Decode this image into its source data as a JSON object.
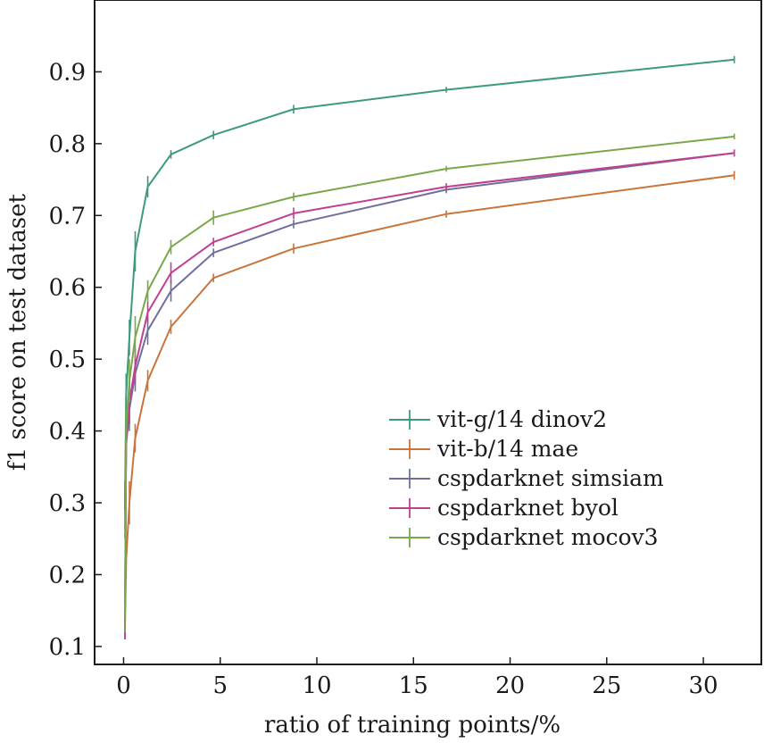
{
  "chart_data": {
    "type": "line",
    "xlabel": "ratio of training points/%",
    "ylabel": "f1 score on test dataset",
    "xlim": [
      -1.5,
      33
    ],
    "ylim": [
      0.075,
      1.0
    ],
    "xticks": [
      0,
      5,
      10,
      15,
      20,
      25,
      30
    ],
    "yticks": [
      0.1,
      0.2,
      0.3,
      0.4,
      0.5,
      0.6,
      0.7,
      0.8,
      0.9
    ],
    "xtick_labels": [
      "0",
      "5",
      "10",
      "15",
      "20",
      "25",
      "30"
    ],
    "ytick_labels": [
      "0.1",
      "0.2",
      "0.3",
      "0.4",
      "0.5",
      "0.6",
      "0.7",
      "0.8",
      "0.9"
    ],
    "grid": false,
    "legend_position": "center-right",
    "x": [
      0.07,
      0.13,
      0.3,
      0.6,
      1.25,
      2.45,
      4.65,
      8.8,
      16.7,
      31.6
    ],
    "series": [
      {
        "name": "vit-g/14 dinov2",
        "color": "#3d9a7c",
        "values": [
          0.29,
          0.45,
          0.53,
          0.65,
          0.74,
          0.785,
          0.812,
          0.848,
          0.875,
          0.917
        ],
        "errors": [
          0.04,
          0.03,
          0.025,
          0.028,
          0.015,
          0.006,
          0.006,
          0.006,
          0.004,
          0.005
        ]
      },
      {
        "name": "vit-b/14 mae",
        "color": "#c8743a",
        "values": [
          0.13,
          0.22,
          0.3,
          0.39,
          0.47,
          0.545,
          0.613,
          0.654,
          0.702,
          0.756
        ],
        "errors": [
          0.02,
          0.025,
          0.03,
          0.02,
          0.015,
          0.01,
          0.006,
          0.007,
          0.005,
          0.006
        ]
      },
      {
        "name": "cspdarknet simsiam",
        "color": "#6e6f9e",
        "values": [
          0.13,
          0.38,
          0.43,
          0.48,
          0.54,
          0.595,
          0.648,
          0.688,
          0.736,
          0.787
        ],
        "errors": [
          0.02,
          0.03,
          0.03,
          0.025,
          0.02,
          0.015,
          0.006,
          0.006,
          0.005,
          0.005
        ]
      },
      {
        "name": "cspdarknet byol",
        "color": "#c1408e",
        "values": [
          0.125,
          0.39,
          0.44,
          0.49,
          0.565,
          0.62,
          0.663,
          0.703,
          0.74,
          0.787
        ],
        "errors": [
          0.015,
          0.03,
          0.03,
          0.025,
          0.015,
          0.015,
          0.006,
          0.008,
          0.005,
          0.004
        ]
      },
      {
        "name": "cspdarknet mocov3",
        "color": "#79a84a",
        "values": [
          0.14,
          0.4,
          0.47,
          0.53,
          0.595,
          0.656,
          0.697,
          0.726,
          0.765,
          0.81
        ],
        "errors": [
          0.02,
          0.03,
          0.03,
          0.03,
          0.015,
          0.01,
          0.01,
          0.006,
          0.004,
          0.004
        ]
      }
    ]
  }
}
